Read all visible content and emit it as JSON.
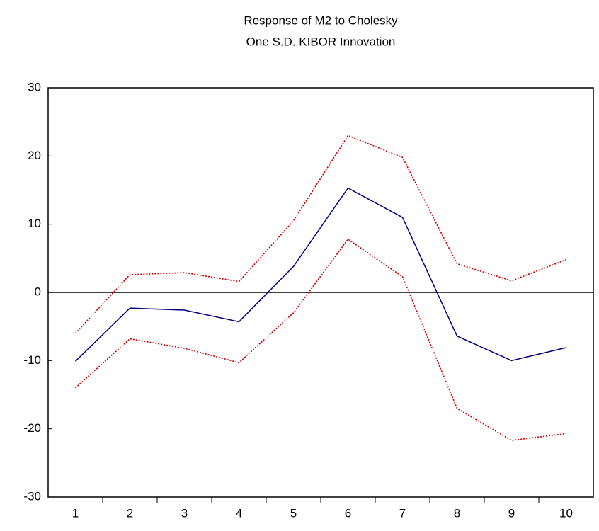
{
  "chart_data": {
    "type": "line",
    "title": "Response of M2 to Cholesky",
    "subtitle": "One S.D. KIBOR Innovation",
    "categories": [
      "1",
      "2",
      "3",
      "4",
      "5",
      "6",
      "7",
      "8",
      "9",
      "10"
    ],
    "series": [
      {
        "color": "#000080",
        "style": "solid",
        "values": [
          -10.1,
          -2.3,
          -2.6,
          -4.3,
          3.8,
          15.3,
          11.0,
          -6.4,
          -10.0,
          -8.1
        ]
      },
      {
        "color": "#c00000",
        "style": "dotted",
        "values": [
          -6.0,
          2.6,
          2.9,
          1.6,
          10.5,
          23.0,
          19.8,
          4.2,
          1.7,
          4.8
        ]
      },
      {
        "color": "#c00000",
        "style": "dotted",
        "values": [
          -14.0,
          -6.8,
          -8.2,
          -10.3,
          -3.0,
          7.8,
          2.3,
          -17.0,
          -21.7,
          -20.7
        ]
      }
    ],
    "ylim": [
      -30,
      30
    ],
    "yticks": [
      -30,
      -20,
      -10,
      0,
      10,
      20,
      30
    ],
    "zero_line": true,
    "grid": false
  }
}
